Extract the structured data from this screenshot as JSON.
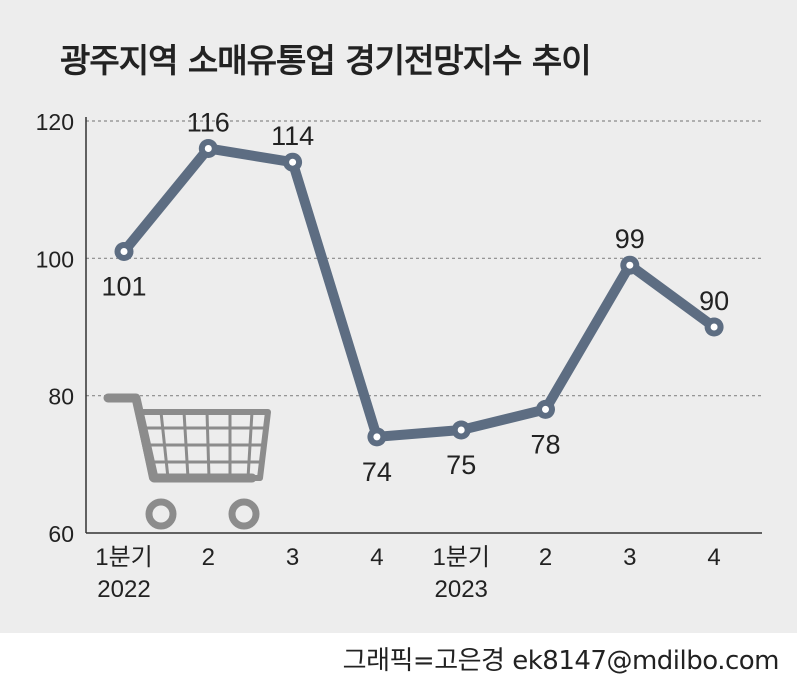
{
  "title": "광주지역 소매유통업 경기전망지수 추이",
  "credit": "그래픽=고은경 ek8147@mdilbo.com",
  "colors": {
    "line": "#5d6d82",
    "background": "#ededed",
    "grid": "#8a8a8a",
    "cart": "#8c8c8c"
  },
  "icon": "shopping-cart-icon",
  "chart_data": {
    "type": "line",
    "title": "광주지역 소매유통업 경기전망지수 추이",
    "xlabel": "",
    "ylabel": "",
    "ylim": [
      60,
      120
    ],
    "yticks": [
      60,
      80,
      100,
      120
    ],
    "grid": true,
    "categories": [
      [
        "1분기",
        "2022"
      ],
      [
        "2"
      ],
      [
        "3"
      ],
      [
        "4"
      ],
      [
        "1분기",
        "2023"
      ],
      [
        "2"
      ],
      [
        "3"
      ],
      [
        "4"
      ]
    ],
    "series": [
      {
        "values": [
          101,
          116,
          114,
          74,
          75,
          78,
          99,
          90
        ]
      }
    ],
    "data_labels": [
      "101",
      "116",
      "114",
      "74",
      "75",
      "78",
      "99",
      "90"
    ],
    "label_positions": [
      "below",
      "above",
      "above",
      "below",
      "below",
      "below",
      "above",
      "above"
    ]
  }
}
